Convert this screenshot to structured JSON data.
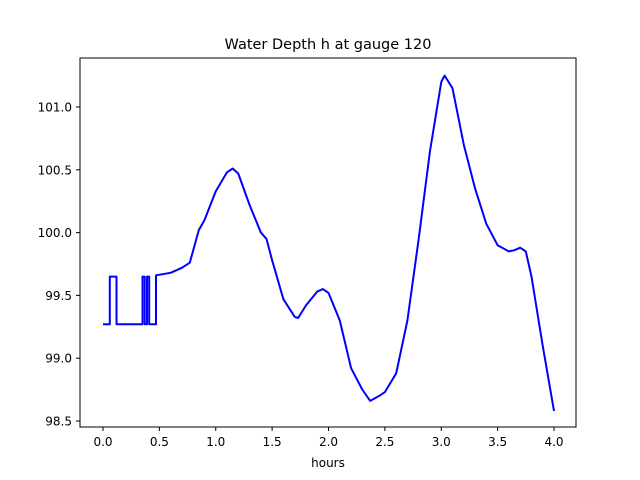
{
  "chart_data": {
    "type": "line",
    "title": "Water Depth h at gauge 120",
    "xlabel": "hours",
    "ylabel": "",
    "xlim": [
      -0.2,
      4.2
    ],
    "ylim": [
      98.45,
      101.4
    ],
    "xticks": [
      0.0,
      0.5,
      1.0,
      1.5,
      2.0,
      2.5,
      3.0,
      3.5,
      4.0
    ],
    "xtick_labels": [
      "0.0",
      "0.5",
      "1.0",
      "1.5",
      "2.0",
      "2.5",
      "3.0",
      "3.5",
      "4.0"
    ],
    "yticks": [
      98.5,
      99.0,
      99.5,
      100.0,
      100.5,
      101.0
    ],
    "ytick_labels": [
      "98.5",
      "99.0",
      "99.5",
      "100.0",
      "100.5",
      "101.0"
    ],
    "grid": false,
    "series": [
      {
        "name": "h",
        "color": "#0000ff",
        "x": [
          0.0,
          0.06,
          0.06,
          0.12,
          0.12,
          0.35,
          0.35,
          0.37,
          0.37,
          0.39,
          0.39,
          0.41,
          0.41,
          0.47,
          0.47,
          0.6,
          0.7,
          0.77,
          0.85,
          0.9,
          1.0,
          1.1,
          1.15,
          1.2,
          1.3,
          1.4,
          1.45,
          1.5,
          1.6,
          1.7,
          1.73,
          1.8,
          1.9,
          1.95,
          2.0,
          2.1,
          2.2,
          2.3,
          2.37,
          2.45,
          2.5,
          2.6,
          2.7,
          2.8,
          2.9,
          3.0,
          3.03,
          3.1,
          3.2,
          3.3,
          3.4,
          3.5,
          3.6,
          3.65,
          3.7,
          3.75,
          3.8,
          3.9,
          4.0
        ],
        "y": [
          99.27,
          99.27,
          99.65,
          99.65,
          99.27,
          99.27,
          99.65,
          99.65,
          99.27,
          99.27,
          99.65,
          99.65,
          99.27,
          99.27,
          99.66,
          99.68,
          99.72,
          99.76,
          100.02,
          100.1,
          100.33,
          100.48,
          100.51,
          100.47,
          100.22,
          100.0,
          99.95,
          99.78,
          99.47,
          99.33,
          99.32,
          99.42,
          99.53,
          99.55,
          99.52,
          99.3,
          98.92,
          98.75,
          98.66,
          98.7,
          98.73,
          98.88,
          99.3,
          99.95,
          100.65,
          101.2,
          101.25,
          101.15,
          100.7,
          100.35,
          100.07,
          99.9,
          99.85,
          99.86,
          99.88,
          99.85,
          99.65,
          99.1,
          98.58
        ]
      }
    ]
  }
}
